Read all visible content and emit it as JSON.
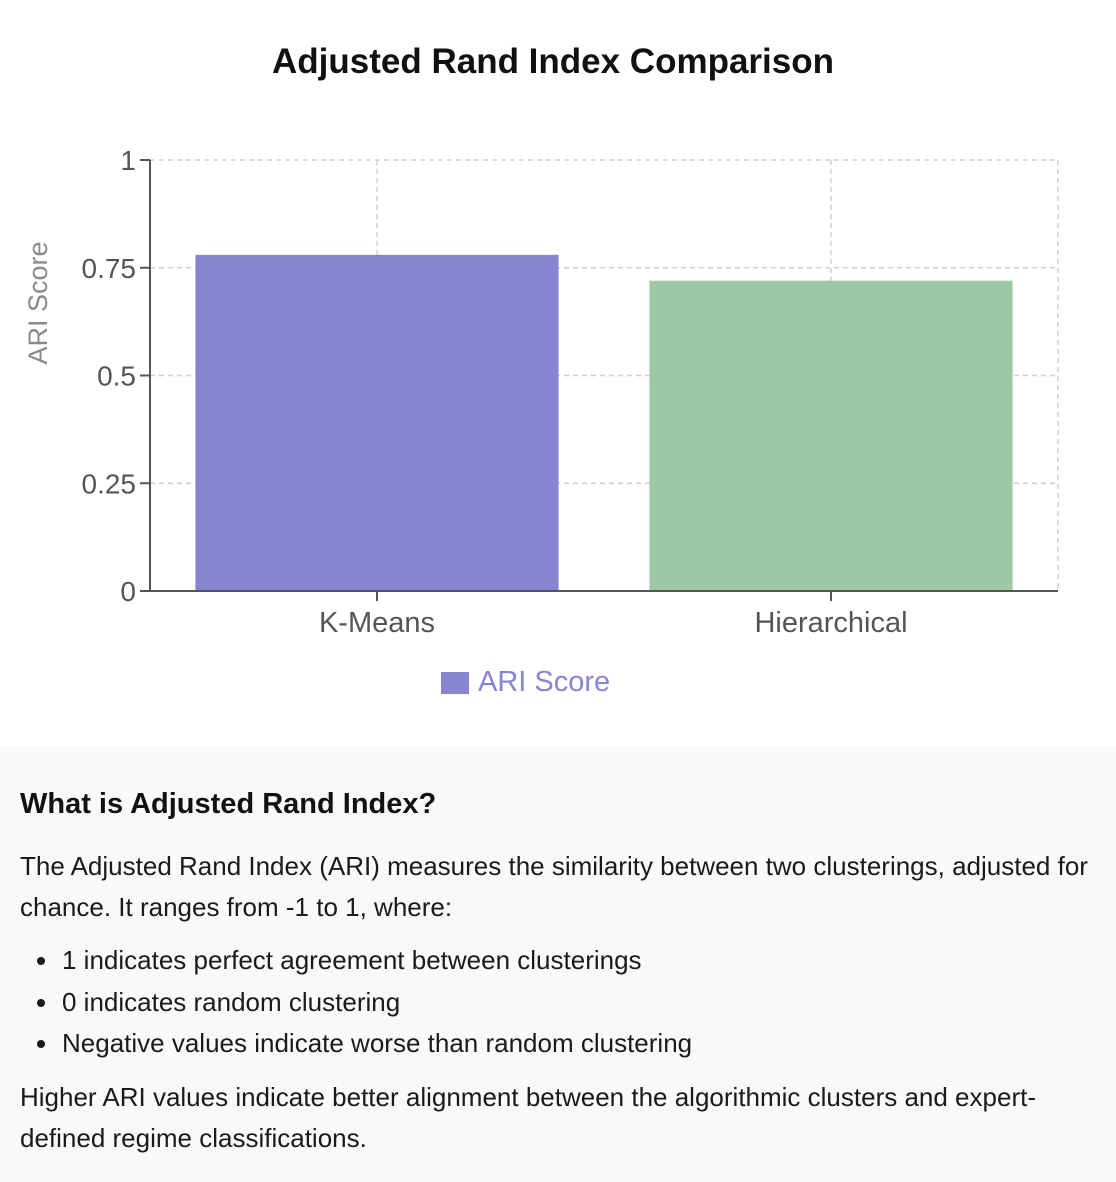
{
  "chart_data": {
    "type": "bar",
    "title": "Adjusted Rand Index Comparison",
    "categories": [
      "K-Means",
      "Hierarchical"
    ],
    "series": [
      {
        "name": "ARI Score",
        "values": [
          0.78,
          0.72
        ],
        "colors": [
          "#8884d0",
          "#9ec8a5"
        ]
      }
    ],
    "ylabel": "ARI Score",
    "xlabel": "",
    "ylim": [
      0,
      1
    ],
    "yticks": [
      0,
      0.25,
      0.5,
      0.75,
      1
    ],
    "ytick_labels": [
      "0",
      "0.25",
      "0.5",
      "0.75",
      "1"
    ],
    "grid": true,
    "legend_position": "bottom-center",
    "legend_color": "#8884d0"
  },
  "info": {
    "heading": "What is Adjusted Rand Index?",
    "intro": "The Adjusted Rand Index (ARI) measures the similarity between two clusterings, adjusted for chance. It ranges from -1 to 1, where:",
    "bullets": [
      "1 indicates perfect agreement between clusterings",
      "0 indicates random clustering",
      "Negative values indicate worse than random clustering"
    ],
    "conclusion": "Higher ARI values indicate better alignment between the algorithmic clusters and expert-defined regime classifications."
  }
}
